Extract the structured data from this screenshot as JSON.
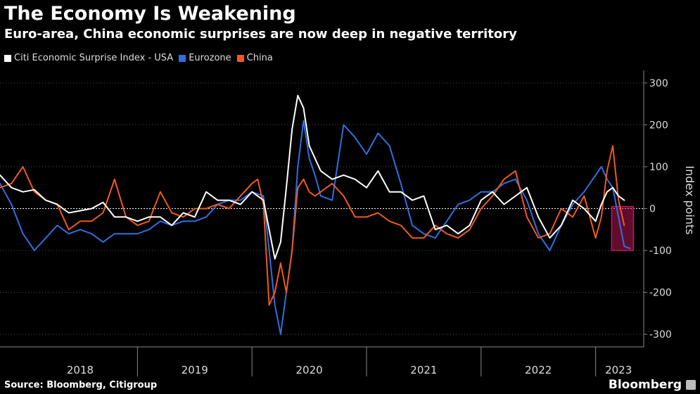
{
  "header": {
    "title": "The Economy Is Weakening",
    "subtitle": "Euro-area, China economic surprises are now deep in negative territory"
  },
  "footer": {
    "source": "Source: Bloomberg, Citigroup",
    "brand": "Bloomberg"
  },
  "chart_data": {
    "type": "line",
    "ylabel": "Index points",
    "ylim": [
      -330,
      330
    ],
    "xlim": [
      2017.8,
      2023.42
    ],
    "y_ticks": [
      300,
      200,
      100,
      0,
      -100,
      -200,
      -300
    ],
    "x_labels": [
      {
        "label": "2018",
        "center": 2018.5
      },
      {
        "label": "2019",
        "center": 2019.5
      },
      {
        "label": "2020",
        "center": 2020.5
      },
      {
        "label": "2021",
        "center": 2021.5
      },
      {
        "label": "2022",
        "center": 2022.5
      },
      {
        "label": "2023",
        "center": 2023.2
      }
    ],
    "x_separators": [
      2019,
      2020,
      2021,
      2022,
      2023
    ],
    "highlight": {
      "x": [
        2023.14,
        2023.33
      ],
      "y": [
        -100,
        5
      ],
      "color": "#c2185b"
    },
    "colors": {
      "usa": "#ffffff",
      "eurozone": "#2f6fe0",
      "china": "#ef5a1e"
    },
    "series": [
      {
        "name": "Citi Economic Surprise Index - USA",
        "color": "#ffffff",
        "x": [
          2017.8,
          2017.9,
          2018.0,
          2018.1,
          2018.2,
          2018.3,
          2018.4,
          2018.5,
          2018.6,
          2018.7,
          2018.8,
          2018.9,
          2019.0,
          2019.1,
          2019.2,
          2019.3,
          2019.4,
          2019.5,
          2019.6,
          2019.7,
          2019.8,
          2019.9,
          2020.0,
          2020.1,
          2020.15,
          2020.2,
          2020.25,
          2020.3,
          2020.35,
          2020.4,
          2020.45,
          2020.5,
          2020.55,
          2020.6,
          2020.7,
          2020.8,
          2020.9,
          2021.0,
          2021.1,
          2021.2,
          2021.3,
          2021.4,
          2021.5,
          2021.6,
          2021.7,
          2021.8,
          2021.9,
          2022.0,
          2022.1,
          2022.2,
          2022.3,
          2022.4,
          2022.5,
          2022.6,
          2022.7,
          2022.8,
          2022.9,
          2023.0,
          2023.05,
          2023.1,
          2023.15,
          2023.2,
          2023.25
        ],
        "y": [
          80,
          50,
          40,
          45,
          20,
          10,
          -10,
          -5,
          0,
          15,
          -20,
          -20,
          -30,
          -20,
          -20,
          -40,
          -10,
          -20,
          40,
          20,
          20,
          10,
          40,
          20,
          -50,
          -120,
          -80,
          50,
          190,
          270,
          240,
          150,
          120,
          90,
          70,
          80,
          70,
          50,
          90,
          40,
          40,
          20,
          30,
          -50,
          -40,
          -60,
          -40,
          20,
          40,
          10,
          30,
          50,
          -20,
          -70,
          -40,
          20,
          0,
          -30,
          10,
          40,
          50,
          30,
          20
        ]
      },
      {
        "name": "Eurozone",
        "color": "#2f6fe0",
        "x": [
          2017.8,
          2017.9,
          2018.0,
          2018.1,
          2018.2,
          2018.3,
          2018.4,
          2018.5,
          2018.6,
          2018.7,
          2018.8,
          2018.9,
          2019.0,
          2019.1,
          2019.2,
          2019.3,
          2019.4,
          2019.5,
          2019.6,
          2019.7,
          2019.8,
          2019.9,
          2020.0,
          2020.1,
          2020.15,
          2020.2,
          2020.25,
          2020.3,
          2020.35,
          2020.4,
          2020.45,
          2020.5,
          2020.55,
          2020.6,
          2020.7,
          2020.8,
          2020.9,
          2021.0,
          2021.1,
          2021.2,
          2021.3,
          2021.4,
          2021.5,
          2021.6,
          2021.7,
          2021.8,
          2021.9,
          2022.0,
          2022.1,
          2022.2,
          2022.3,
          2022.4,
          2022.5,
          2022.6,
          2022.7,
          2022.8,
          2022.9,
          2023.0,
          2023.05,
          2023.1,
          2023.15,
          2023.2,
          2023.25,
          2023.3
        ],
        "y": [
          60,
          10,
          -60,
          -100,
          -70,
          -40,
          -60,
          -50,
          -60,
          -80,
          -60,
          -60,
          -60,
          -50,
          -30,
          -40,
          -30,
          -30,
          -20,
          10,
          20,
          20,
          40,
          30,
          -100,
          -230,
          -300,
          -200,
          -100,
          100,
          210,
          120,
          80,
          30,
          20,
          200,
          170,
          130,
          180,
          150,
          60,
          -40,
          -60,
          -70,
          -30,
          10,
          20,
          40,
          40,
          60,
          70,
          20,
          -60,
          -100,
          -40,
          10,
          40,
          80,
          100,
          70,
          50,
          -20,
          -90,
          -95
        ]
      },
      {
        "name": "China",
        "color": "#ef5a1e",
        "x": [
          2017.8,
          2017.9,
          2018.0,
          2018.1,
          2018.2,
          2018.3,
          2018.4,
          2018.5,
          2018.6,
          2018.7,
          2018.8,
          2018.9,
          2019.0,
          2019.1,
          2019.2,
          2019.3,
          2019.4,
          2019.5,
          2019.6,
          2019.7,
          2019.8,
          2019.9,
          2020.0,
          2020.05,
          2020.1,
          2020.15,
          2020.2,
          2020.25,
          2020.3,
          2020.35,
          2020.4,
          2020.45,
          2020.5,
          2020.55,
          2020.6,
          2020.7,
          2020.8,
          2020.9,
          2021.0,
          2021.1,
          2021.2,
          2021.3,
          2021.4,
          2021.5,
          2021.6,
          2021.7,
          2021.8,
          2021.9,
          2022.0,
          2022.1,
          2022.2,
          2022.3,
          2022.4,
          2022.5,
          2022.6,
          2022.7,
          2022.8,
          2022.9,
          2023.0,
          2023.05,
          2023.1,
          2023.15,
          2023.2,
          2023.25
        ],
        "y": [
          50,
          60,
          100,
          40,
          20,
          10,
          -50,
          -30,
          -30,
          -10,
          70,
          -20,
          -40,
          -30,
          40,
          -10,
          -20,
          0,
          0,
          10,
          0,
          30,
          60,
          70,
          10,
          -230,
          -200,
          -130,
          -200,
          -100,
          50,
          70,
          40,
          30,
          40,
          60,
          30,
          -20,
          -20,
          -10,
          -30,
          -40,
          -70,
          -70,
          -40,
          -60,
          -70,
          -50,
          0,
          30,
          70,
          90,
          -20,
          -70,
          -60,
          0,
          -20,
          30,
          -70,
          -20,
          90,
          150,
          20,
          -40
        ]
      }
    ]
  }
}
